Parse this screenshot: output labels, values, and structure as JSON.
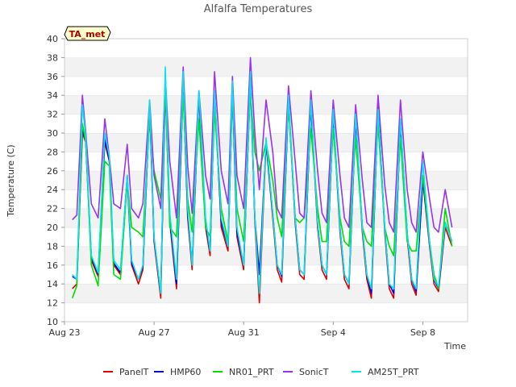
{
  "chart_data": {
    "type": "line",
    "title": "Alfalfa Temperatures",
    "xlabel": "Time",
    "ylabel": "Temperature (C)",
    "ylim": [
      10,
      40
    ],
    "xlim": [
      0,
      18
    ],
    "yticks": [
      10,
      12,
      14,
      16,
      18,
      20,
      22,
      24,
      26,
      28,
      30,
      32,
      34,
      36,
      38,
      40
    ],
    "xticks": [
      {
        "x": 0,
        "label": "Aug 23"
      },
      {
        "x": 4,
        "label": "Aug 27"
      },
      {
        "x": 8,
        "label": "Aug 31"
      },
      {
        "x": 12,
        "label": "Sep 4"
      },
      {
        "x": 16,
        "label": "Sep 8"
      }
    ],
    "grid": "horizontal bands",
    "legend_position": "bottom",
    "annotation": "TA_met",
    "series": [
      {
        "name": "PanelT",
        "color": "#dd0000",
        "x": [
          0.35,
          0.55,
          0.8,
          0.95,
          1.2,
          1.5,
          1.8,
          2.0,
          2.2,
          2.5,
          2.8,
          3.0,
          3.3,
          3.5,
          3.8,
          4.0,
          4.3,
          4.5,
          4.7,
          5.0,
          5.3,
          5.5,
          5.7,
          6.0,
          6.3,
          6.5,
          6.7,
          7.0,
          7.3,
          7.5,
          7.7,
          8.0,
          8.3,
          8.5,
          8.7,
          9.0,
          9.3,
          9.5,
          9.7,
          10.0,
          10.3,
          10.5,
          10.7,
          11.0,
          11.3,
          11.5,
          11.7,
          12.0,
          12.3,
          12.5,
          12.7,
          13.0,
          13.3,
          13.5,
          13.7,
          14.0,
          14.3,
          14.5,
          14.7,
          15.0,
          15.3,
          15.5,
          15.7,
          16.0,
          16.3,
          16.5,
          16.7,
          17.0,
          17.3
        ],
        "y": [
          13.5,
          14.0,
          30.0,
          29.0,
          16.5,
          14.8,
          29.0,
          27.0,
          16.0,
          15.0,
          25.0,
          16.0,
          14.0,
          15.5,
          33.0,
          18.5,
          12.5,
          35.0,
          20.5,
          13.5,
          35.5,
          21.0,
          15.5,
          34.0,
          20.0,
          17.0,
          34.5,
          20.0,
          17.5,
          35.0,
          19.0,
          15.5,
          36.5,
          20.5,
          12.0,
          29.0,
          21.0,
          15.5,
          14.2,
          33.5,
          20.5,
          15.0,
          14.5,
          33.0,
          20.0,
          15.5,
          14.5,
          32.0,
          19.5,
          14.5,
          13.5,
          31.5,
          19.5,
          14.5,
          12.5,
          33.0,
          19.5,
          13.5,
          12.5,
          31.5,
          19.0,
          14.0,
          12.8,
          25.0,
          18.0,
          14.0,
          13.2,
          20.0,
          18.0
        ]
      },
      {
        "name": "HMP60",
        "color": "#0000dd",
        "x": [
          0.35,
          0.55,
          0.8,
          0.95,
          1.2,
          1.5,
          1.8,
          2.0,
          2.2,
          2.5,
          2.8,
          3.0,
          3.3,
          3.5,
          3.8,
          4.0,
          4.3,
          4.5,
          4.7,
          5.0,
          5.3,
          5.5,
          5.7,
          6.0,
          6.3,
          6.5,
          6.7,
          7.0,
          7.3,
          7.5,
          7.7,
          8.0,
          8.3,
          8.5,
          8.7,
          9.0,
          9.3,
          9.5,
          9.7,
          10.0,
          10.3,
          10.5,
          10.7,
          11.0,
          11.3,
          11.5,
          11.7,
          12.0,
          12.3,
          12.5,
          12.7,
          13.0,
          13.3,
          13.5,
          13.7,
          14.0,
          14.3,
          14.5,
          14.7,
          15.0,
          15.3,
          15.5,
          15.7,
          16.0,
          16.3,
          16.5,
          16.7,
          17.0,
          17.3
        ],
        "y": [
          14.8,
          14.5,
          30.5,
          29.0,
          16.8,
          15.0,
          29.5,
          27.0,
          16.2,
          15.2,
          25.5,
          16.2,
          14.5,
          15.8,
          33.0,
          18.8,
          13.0,
          35.5,
          21.0,
          14.0,
          35.0,
          21.5,
          16.0,
          34.0,
          20.5,
          17.5,
          34.0,
          20.5,
          18.0,
          34.5,
          19.5,
          16.0,
          35.5,
          21.0,
          15.0,
          29.0,
          21.5,
          16.0,
          14.8,
          33.5,
          21.0,
          15.5,
          15.0,
          33.0,
          20.5,
          16.0,
          15.0,
          32.0,
          20.0,
          15.0,
          14.0,
          31.5,
          20.0,
          15.0,
          13.0,
          32.5,
          20.0,
          14.0,
          13.0,
          31.0,
          19.5,
          14.5,
          13.2,
          25.0,
          18.5,
          14.5,
          13.5,
          20.5,
          18.5
        ]
      },
      {
        "name": "NR01_PRT",
        "color": "#00dd00",
        "x": [
          0.35,
          0.55,
          0.8,
          0.95,
          1.2,
          1.5,
          1.8,
          2.0,
          2.2,
          2.5,
          2.8,
          3.0,
          3.3,
          3.5,
          3.8,
          4.0,
          4.3,
          4.5,
          4.7,
          5.0,
          5.3,
          5.5,
          5.7,
          6.0,
          6.3,
          6.5,
          6.7,
          7.0,
          7.3,
          7.5,
          7.7,
          8.0,
          8.3,
          8.5,
          8.7,
          9.0,
          9.3,
          9.5,
          9.7,
          10.0,
          10.3,
          10.5,
          10.7,
          11.0,
          11.3,
          11.5,
          11.7,
          12.0,
          12.3,
          12.5,
          12.7,
          13.0,
          13.3,
          13.5,
          13.7,
          14.0,
          14.3,
          14.5,
          14.7,
          15.0,
          15.3,
          15.5,
          15.7,
          16.0,
          16.3,
          16.5,
          16.7,
          17.0,
          17.3
        ],
        "y": [
          12.5,
          13.8,
          31.0,
          29.0,
          16.0,
          13.8,
          27.0,
          26.5,
          15.0,
          14.5,
          25.0,
          20.0,
          19.5,
          19.0,
          31.5,
          26.0,
          23.0,
          35.0,
          20.0,
          19.0,
          34.0,
          23.0,
          19.5,
          31.5,
          20.0,
          19.0,
          32.5,
          22.0,
          18.5,
          34.5,
          22.0,
          18.5,
          34.5,
          28.0,
          26.0,
          29.0,
          25.0,
          21.0,
          19.0,
          33.0,
          21.0,
          20.5,
          21.0,
          30.5,
          22.0,
          18.5,
          18.5,
          30.5,
          21.0,
          18.5,
          18.0,
          29.5,
          20.0,
          18.5,
          18.0,
          31.0,
          20.0,
          18.0,
          17.0,
          29.5,
          18.5,
          17.5,
          17.5,
          25.5,
          18.5,
          15.0,
          13.5,
          22.0,
          18.0
        ]
      },
      {
        "name": "SonicT",
        "color": "#9933ee",
        "x": [
          0.35,
          0.55,
          0.8,
          0.95,
          1.2,
          1.5,
          1.8,
          2.0,
          2.2,
          2.5,
          2.8,
          3.0,
          3.3,
          3.5,
          3.8,
          4.0,
          4.3,
          4.5,
          4.7,
          5.0,
          5.3,
          5.5,
          5.7,
          6.0,
          6.3,
          6.5,
          6.7,
          7.0,
          7.3,
          7.5,
          7.7,
          8.0,
          8.3,
          8.5,
          8.7,
          9.0,
          9.3,
          9.5,
          9.7,
          10.0,
          10.3,
          10.5,
          10.7,
          11.0,
          11.3,
          11.5,
          11.7,
          12.0,
          12.3,
          12.5,
          12.7,
          13.0,
          13.3,
          13.5,
          13.7,
          14.0,
          14.3,
          14.5,
          14.7,
          15.0,
          15.3,
          15.5,
          15.7,
          16.0,
          16.3,
          16.5,
          16.7,
          17.0,
          17.3
        ],
        "y": [
          20.8,
          21.3,
          34.0,
          30.0,
          22.5,
          21.0,
          31.5,
          27.5,
          22.5,
          22.0,
          28.8,
          22.0,
          21.0,
          22.5,
          33.5,
          25.5,
          22.0,
          36.0,
          27.0,
          21.0,
          37.0,
          26.5,
          21.5,
          34.5,
          25.5,
          23.0,
          36.5,
          26.0,
          22.5,
          36.0,
          25.5,
          22.0,
          38.0,
          30.0,
          24.0,
          33.5,
          28.0,
          22.0,
          21.0,
          35.0,
          27.0,
          21.5,
          21.0,
          34.5,
          26.0,
          21.5,
          20.5,
          33.5,
          25.5,
          21.0,
          20.0,
          33.0,
          25.0,
          20.5,
          20.0,
          34.0,
          24.5,
          20.5,
          19.5,
          33.5,
          24.0,
          20.5,
          19.5,
          28.0,
          23.0,
          20.0,
          19.5,
          24.0,
          20.0
        ]
      },
      {
        "name": "AM25T_PRT",
        "color": "#00e5ee",
        "x": [
          0.35,
          0.55,
          0.8,
          0.95,
          1.2,
          1.5,
          1.8,
          2.0,
          2.2,
          2.5,
          2.8,
          3.0,
          3.3,
          3.5,
          3.8,
          4.0,
          4.3,
          4.5,
          4.7,
          5.0,
          5.3,
          5.5,
          5.7,
          6.0,
          6.3,
          6.5,
          6.7,
          7.0,
          7.3,
          7.5,
          7.7,
          8.0,
          8.3,
          8.5,
          8.7,
          9.0,
          9.3,
          9.5,
          9.7,
          10.0,
          10.3,
          10.5,
          10.7,
          11.0,
          11.3,
          11.5,
          11.7,
          12.0,
          12.3,
          12.5,
          12.7,
          13.0,
          13.3,
          13.5,
          13.7,
          14.0,
          14.3,
          14.5,
          14.7,
          15.0,
          15.3,
          15.5,
          15.7,
          16.0,
          16.3,
          16.5,
          16.7,
          17.0,
          17.3
        ],
        "y": [
          15.0,
          14.5,
          33.0,
          29.5,
          17.0,
          15.2,
          30.0,
          27.5,
          16.5,
          15.5,
          25.5,
          16.5,
          14.5,
          16.0,
          33.5,
          19.0,
          13.0,
          37.0,
          21.5,
          14.5,
          36.5,
          22.0,
          16.0,
          34.5,
          21.0,
          17.5,
          34.5,
          21.0,
          18.0,
          35.5,
          20.0,
          16.0,
          36.5,
          21.0,
          13.0,
          29.5,
          21.5,
          16.0,
          15.0,
          34.0,
          21.0,
          15.5,
          15.0,
          33.5,
          20.5,
          16.0,
          15.0,
          32.5,
          20.0,
          15.0,
          14.0,
          32.0,
          20.0,
          15.0,
          13.5,
          32.5,
          20.0,
          14.0,
          13.5,
          31.5,
          19.5,
          14.5,
          13.5,
          27.0,
          18.5,
          14.5,
          13.8,
          20.5,
          18.5
        ]
      }
    ]
  }
}
